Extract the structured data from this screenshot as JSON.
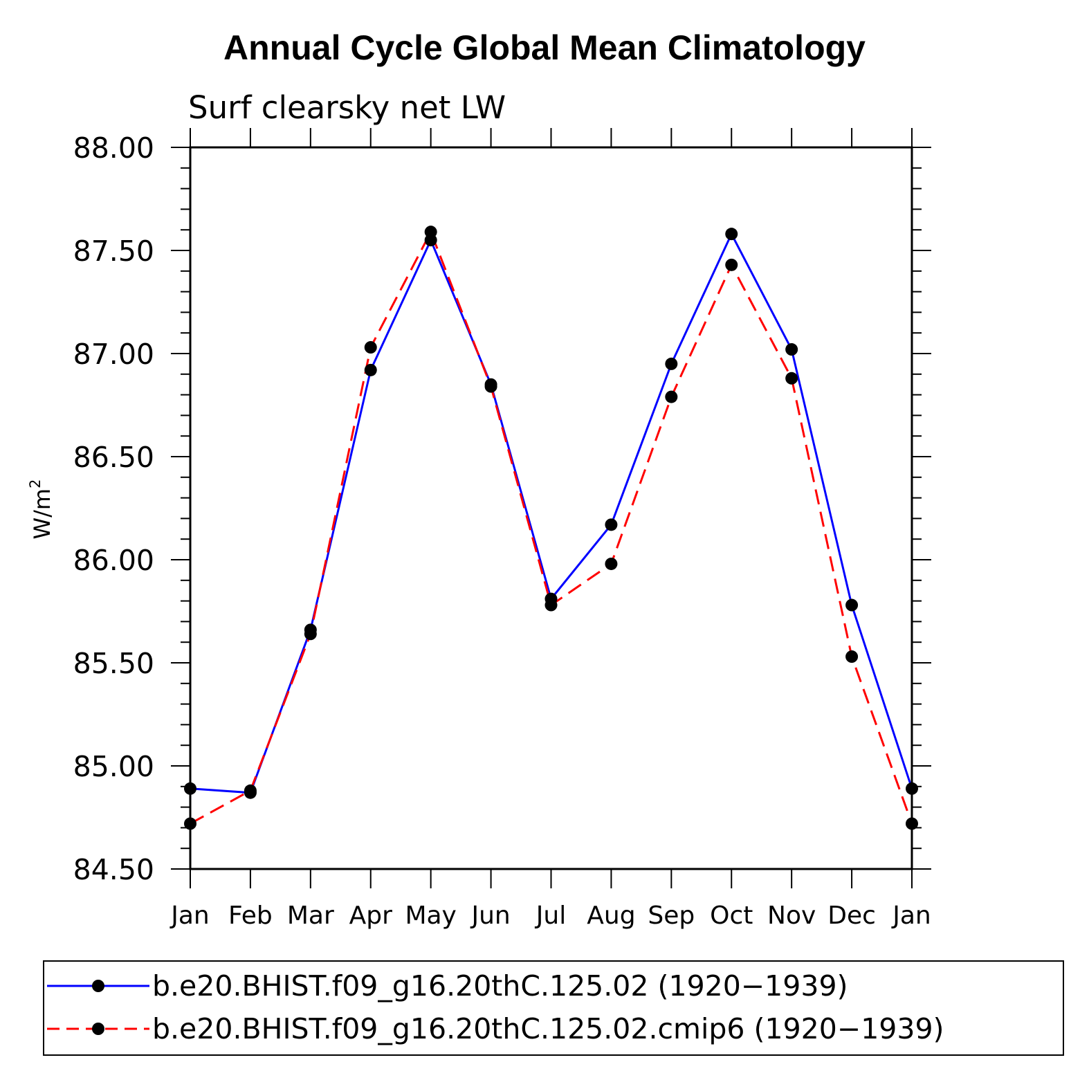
{
  "chart_data": {
    "type": "line",
    "title": "Annual Cycle Global Mean Climatology",
    "subtitle": "Surf clearsky net LW",
    "ylabel": "W/m",
    "ylabel_superscript": "2",
    "xlabel": "",
    "ylim": [
      84.5,
      88.0
    ],
    "yticks": [
      "84.50",
      "85.00",
      "85.50",
      "86.00",
      "86.50",
      "87.00",
      "87.50",
      "88.00"
    ],
    "categories": [
      "Jan",
      "Feb",
      "Mar",
      "Apr",
      "May",
      "Jun",
      "Jul",
      "Aug",
      "Sep",
      "Oct",
      "Nov",
      "Dec",
      "Jan"
    ],
    "series": [
      {
        "name": "b.e20.BHIST.f09_g16.20thC.125.02 (1920−1939)",
        "color": "#0000ff",
        "dash": "solid",
        "values": [
          84.89,
          84.87,
          85.66,
          86.92,
          87.55,
          86.85,
          85.81,
          86.17,
          86.95,
          87.58,
          87.02,
          85.78,
          84.89
        ]
      },
      {
        "name": "b.e20.BHIST.f09_g16.20thC.125.02.cmip6 (1920−1939)",
        "color": "#ff0000",
        "dash": "dashed",
        "values": [
          84.72,
          84.88,
          85.64,
          87.03,
          87.59,
          86.84,
          85.78,
          85.98,
          86.79,
          87.43,
          86.88,
          85.53,
          84.72
        ]
      }
    ],
    "legend_position": "bottom",
    "grid": false
  }
}
